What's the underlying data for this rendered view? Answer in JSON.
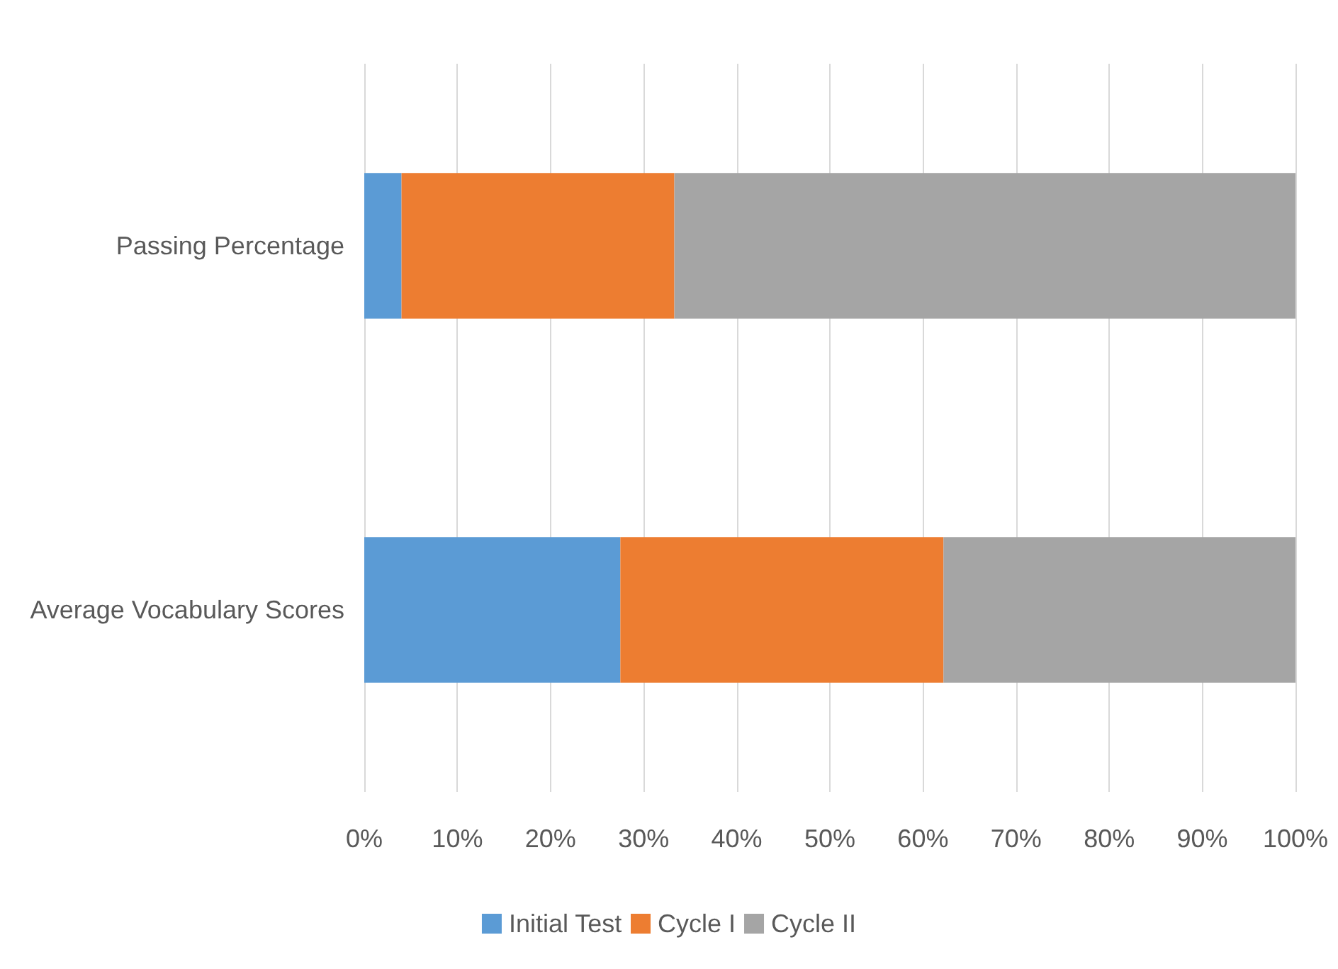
{
  "chart_data": {
    "type": "bar",
    "orientation": "horizontal",
    "stacked": true,
    "categories": [
      "Passing Percentage",
      "Average Vocabulary Scores"
    ],
    "series": [
      {
        "name": "Initial Test",
        "color": "#5b9bd5",
        "values": [
          4,
          27.5
        ]
      },
      {
        "name": "Cycle I",
        "color": "#ed7d31",
        "values": [
          29.3,
          34.7
        ]
      },
      {
        "name": "Cycle II",
        "color": "#a5a5a5",
        "values": [
          66.7,
          37.8
        ]
      }
    ],
    "xlim": [
      0,
      100
    ],
    "xticks": [
      {
        "value": 0,
        "label": "0%"
      },
      {
        "value": 10,
        "label": "10%"
      },
      {
        "value": 20,
        "label": "20%"
      },
      {
        "value": 30,
        "label": "30%"
      },
      {
        "value": 40,
        "label": "40%"
      },
      {
        "value": 50,
        "label": "50%"
      },
      {
        "value": 60,
        "label": "60%"
      },
      {
        "value": 70,
        "label": "70%"
      },
      {
        "value": 80,
        "label": "80%"
      },
      {
        "value": 90,
        "label": "90%"
      },
      {
        "value": 100,
        "label": "100%"
      }
    ],
    "grid": "x",
    "legend": "bottom"
  }
}
